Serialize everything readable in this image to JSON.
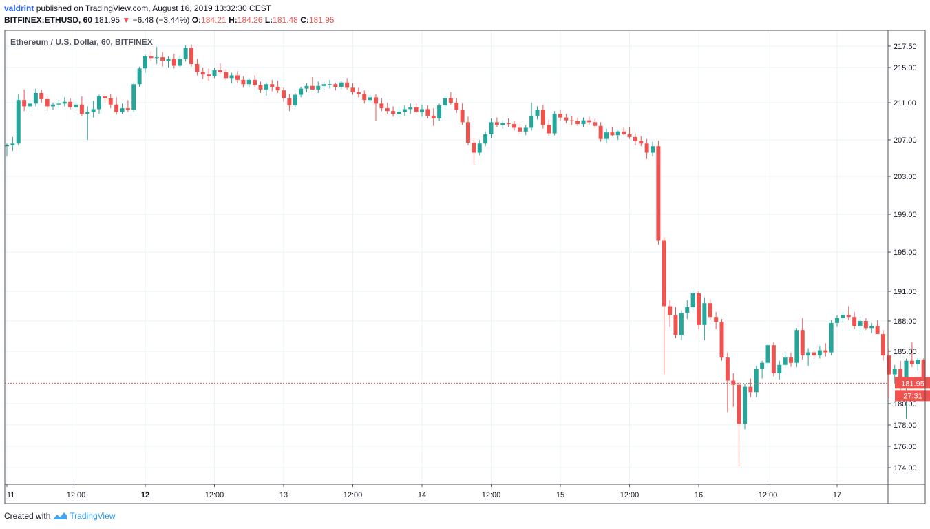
{
  "header": {
    "user": "valdrint",
    "published_text": "published on TradingView.com, August 16, 2019 13:32:30 CEST",
    "symbol": "BITFINEX:ETHUSD, 60",
    "last": "181.95",
    "change_arrow": "▼",
    "change": "−6.48 (−3.44%)",
    "o_label": "O:",
    "o": "184.21",
    "h_label": "H:",
    "h": "184.26",
    "l_label": "L:",
    "l": "181.48",
    "c_label": "C:",
    "c": "181.95"
  },
  "footer": {
    "created_with": "Created with",
    "brand": "TradingView"
  },
  "colors": {
    "up": "#26a69a",
    "down": "#ef5350",
    "grid": "#e9f3f8",
    "axis": "#9598a1",
    "price_line": "#ef5350"
  },
  "chart_data": {
    "type": "candlestick",
    "title": "Ethereum / U.S. Dollar, 60, BITFINEX",
    "x_ticks": [
      "11",
      "12:00",
      "12",
      "12:00",
      "13",
      "12:00",
      "14",
      "12:00",
      "15",
      "12:00",
      "16",
      "12:00",
      "17"
    ],
    "y_ticks": [
      "217.50",
      "215.00",
      "211.00",
      "207.00",
      "203.00",
      "199.00",
      "195.00",
      "191.00",
      "188.00",
      "185.00",
      "180.00",
      "178.00",
      "176.00",
      "174.00"
    ],
    "y_tick_values": [
      217.5,
      215.0,
      211.0,
      207.0,
      203.0,
      199.0,
      195.0,
      191.0,
      188.0,
      185.0,
      180.0,
      178.0,
      176.0,
      174.0
    ],
    "last_price": 181.95,
    "last_price_label": "181.95",
    "countdown_label": "27:31",
    "grid": true,
    "candles": [
      [
        206.3,
        206.6,
        205.2,
        206.4
      ],
      [
        206.4,
        207.3,
        205.8,
        206.6
      ],
      [
        206.6,
        212.0,
        206.4,
        211.3
      ],
      [
        211.3,
        212.5,
        210.1,
        210.6
      ],
      [
        210.6,
        211.3,
        210.0,
        210.9
      ],
      [
        210.9,
        212.6,
        210.6,
        212.1
      ],
      [
        212.1,
        212.5,
        211.0,
        211.4
      ],
      [
        211.4,
        211.7,
        210.1,
        210.6
      ],
      [
        210.6,
        211.0,
        210.2,
        210.8
      ],
      [
        210.8,
        211.3,
        210.4,
        210.9
      ],
      [
        210.9,
        211.6,
        210.6,
        211.1
      ],
      [
        211.1,
        211.5,
        210.3,
        210.5
      ],
      [
        210.5,
        211.2,
        210.1,
        210.8
      ],
      [
        210.8,
        211.7,
        209.6,
        209.8
      ],
      [
        209.8,
        210.6,
        207.0,
        210.0
      ],
      [
        210.0,
        211.2,
        209.4,
        210.3
      ],
      [
        210.3,
        211.9,
        209.8,
        211.7
      ],
      [
        211.7,
        212.0,
        211.0,
        211.5
      ],
      [
        211.5,
        212.0,
        210.4,
        210.8
      ],
      [
        210.8,
        211.6,
        209.7,
        210.0
      ],
      [
        210.0,
        210.9,
        209.8,
        210.4
      ],
      [
        210.4,
        211.3,
        210.0,
        210.2
      ],
      [
        210.2,
        213.3,
        210.0,
        213.1
      ],
      [
        213.1,
        215.1,
        212.8,
        214.9
      ],
      [
        214.9,
        216.5,
        214.4,
        216.3
      ],
      [
        216.3,
        216.9,
        215.8,
        216.1
      ],
      [
        216.1,
        217.4,
        215.4,
        216.2
      ],
      [
        216.2,
        216.8,
        215.1,
        215.8
      ],
      [
        215.8,
        216.3,
        215.0,
        216.0
      ],
      [
        216.0,
        216.6,
        214.9,
        215.2
      ],
      [
        215.2,
        216.4,
        215.1,
        216.0
      ],
      [
        216.0,
        217.6,
        215.7,
        217.3
      ],
      [
        217.3,
        217.7,
        215.1,
        215.4
      ],
      [
        215.4,
        216.0,
        214.1,
        214.5
      ],
      [
        214.5,
        215.0,
        213.7,
        214.2
      ],
      [
        214.2,
        214.9,
        213.5,
        214.0
      ],
      [
        214.0,
        215.0,
        213.8,
        214.7
      ],
      [
        214.7,
        215.5,
        214.3,
        214.5
      ],
      [
        214.5,
        214.8,
        213.6,
        213.8
      ],
      [
        213.8,
        214.4,
        213.2,
        214.1
      ],
      [
        214.1,
        214.6,
        213.2,
        213.6
      ],
      [
        213.6,
        214.0,
        212.7,
        213.1
      ],
      [
        213.1,
        213.8,
        212.7,
        213.6
      ],
      [
        213.6,
        214.1,
        212.8,
        213.0
      ],
      [
        213.0,
        213.4,
        212.1,
        212.5
      ],
      [
        212.5,
        213.3,
        211.8,
        213.1
      ],
      [
        213.1,
        213.6,
        212.3,
        212.8
      ],
      [
        212.8,
        213.5,
        212.1,
        212.4
      ],
      [
        212.4,
        212.7,
        211.1,
        211.5
      ],
      [
        211.5,
        212.0,
        210.1,
        210.7
      ],
      [
        210.7,
        212.1,
        210.5,
        211.9
      ],
      [
        211.9,
        212.8,
        211.6,
        212.6
      ],
      [
        212.6,
        213.2,
        212.2,
        212.9
      ],
      [
        212.9,
        213.9,
        212.5,
        212.5
      ],
      [
        212.5,
        213.4,
        212.1,
        212.9
      ],
      [
        212.9,
        213.4,
        212.5,
        213.1
      ],
      [
        213.1,
        213.6,
        212.6,
        213.1
      ],
      [
        213.1,
        213.3,
        212.4,
        212.8
      ],
      [
        212.8,
        213.5,
        212.5,
        213.3
      ],
      [
        213.3,
        213.8,
        212.5,
        212.7
      ],
      [
        212.7,
        213.2,
        211.9,
        212.2
      ],
      [
        212.2,
        212.7,
        211.6,
        212.0
      ],
      [
        212.0,
        212.4,
        210.9,
        211.3
      ],
      [
        211.3,
        211.9,
        211.0,
        211.6
      ],
      [
        211.6,
        212.0,
        209.0,
        210.9
      ],
      [
        210.9,
        211.5,
        210.1,
        210.4
      ],
      [
        210.4,
        211.0,
        209.8,
        210.1
      ],
      [
        210.1,
        210.6,
        209.5,
        209.8
      ],
      [
        209.8,
        210.6,
        209.4,
        210.0
      ],
      [
        210.0,
        210.7,
        209.6,
        210.3
      ],
      [
        210.3,
        210.9,
        209.8,
        210.5
      ],
      [
        210.5,
        210.9,
        209.9,
        210.0
      ],
      [
        210.0,
        210.8,
        209.5,
        210.3
      ],
      [
        210.3,
        210.7,
        209.3,
        209.6
      ],
      [
        209.6,
        210.4,
        208.5,
        209.3
      ],
      [
        209.3,
        210.9,
        209.0,
        210.7
      ],
      [
        210.7,
        211.8,
        210.2,
        211.5
      ],
      [
        211.5,
        212.2,
        210.8,
        211.0
      ],
      [
        211.0,
        211.5,
        209.9,
        210.2
      ],
      [
        210.2,
        210.9,
        208.6,
        208.9
      ],
      [
        208.9,
        209.5,
        206.4,
        206.7
      ],
      [
        206.7,
        207.2,
        204.3,
        205.6
      ],
      [
        205.6,
        207.0,
        205.3,
        206.6
      ],
      [
        206.6,
        207.9,
        206.3,
        207.6
      ],
      [
        207.6,
        209.3,
        207.2,
        208.9
      ],
      [
        208.9,
        209.4,
        208.4,
        208.6
      ],
      [
        208.6,
        209.1,
        208.2,
        208.8
      ],
      [
        208.8,
        209.3,
        208.4,
        208.7
      ],
      [
        208.7,
        209.0,
        208.0,
        208.3
      ],
      [
        208.3,
        208.7,
        207.6,
        207.9
      ],
      [
        207.9,
        208.6,
        207.5,
        208.3
      ],
      [
        208.3,
        211.0,
        208.0,
        209.6
      ],
      [
        209.6,
        210.6,
        209.2,
        210.2
      ],
      [
        210.2,
        210.8,
        208.2,
        208.6
      ],
      [
        208.6,
        209.2,
        207.4,
        207.7
      ],
      [
        207.7,
        210.1,
        207.5,
        209.8
      ],
      [
        209.8,
        210.2,
        209.0,
        209.4
      ],
      [
        209.4,
        209.8,
        208.8,
        209.1
      ],
      [
        209.1,
        209.6,
        208.6,
        209.0
      ],
      [
        209.0,
        209.4,
        208.5,
        208.7
      ],
      [
        208.7,
        209.4,
        208.4,
        209.1
      ],
      [
        209.1,
        209.5,
        208.6,
        208.9
      ],
      [
        208.9,
        209.3,
        208.3,
        208.5
      ],
      [
        208.5,
        208.9,
        206.8,
        207.1
      ],
      [
        207.1,
        208.2,
        206.6,
        207.8
      ],
      [
        207.8,
        208.4,
        207.4,
        207.5
      ],
      [
        207.5,
        208.0,
        207.0,
        207.9
      ],
      [
        207.9,
        208.3,
        207.5,
        207.6
      ],
      [
        207.6,
        208.4,
        207.1,
        207.3
      ],
      [
        207.3,
        207.7,
        206.4,
        206.9
      ],
      [
        206.9,
        207.4,
        206.3,
        206.6
      ],
      [
        206.6,
        207.1,
        204.9,
        205.6
      ],
      [
        205.6,
        206.8,
        205.2,
        206.3
      ],
      [
        206.3,
        206.9,
        195.8,
        196.2
      ],
      [
        196.2,
        196.6,
        182.8,
        189.5
      ],
      [
        189.5,
        190.1,
        187.4,
        188.6
      ],
      [
        188.6,
        189.4,
        186.3,
        186.6
      ],
      [
        186.6,
        189.1,
        186.1,
        188.8
      ],
      [
        188.8,
        190.1,
        188.2,
        189.4
      ],
      [
        189.4,
        191.1,
        189.1,
        190.8
      ],
      [
        190.8,
        191.0,
        187.2,
        187.6
      ],
      [
        187.6,
        190.4,
        186.1,
        189.8
      ],
      [
        189.8,
        190.2,
        188.1,
        188.4
      ],
      [
        188.4,
        188.9,
        187.2,
        187.9
      ],
      [
        187.9,
        188.2,
        184.1,
        184.4
      ],
      [
        184.4,
        184.9,
        179.2,
        182.2
      ],
      [
        182.2,
        182.9,
        179.7,
        181.8
      ],
      [
        181.8,
        182.1,
        174.1,
        178.1
      ],
      [
        178.1,
        181.9,
        177.6,
        181.6
      ],
      [
        181.6,
        182.4,
        180.6,
        181.1
      ],
      [
        181.1,
        183.6,
        180.6,
        183.3
      ],
      [
        183.3,
        184.1,
        182.4,
        183.9
      ],
      [
        183.9,
        185.7,
        183.5,
        185.6
      ],
      [
        185.6,
        185.9,
        182.6,
        182.9
      ],
      [
        182.9,
        184.1,
        182.3,
        183.7
      ],
      [
        183.7,
        184.9,
        183.4,
        184.4
      ],
      [
        184.4,
        184.9,
        183.5,
        183.9
      ],
      [
        183.9,
        187.3,
        183.5,
        187.1
      ],
      [
        187.1,
        188.3,
        184.2,
        184.6
      ],
      [
        184.6,
        185.3,
        183.6,
        184.9
      ],
      [
        184.9,
        185.1,
        184.3,
        184.6
      ],
      [
        184.6,
        185.5,
        184.3,
        185.1
      ],
      [
        185.1,
        185.8,
        184.5,
        184.9
      ],
      [
        184.9,
        188.1,
        184.6,
        187.8
      ],
      [
        187.8,
        188.6,
        187.4,
        188.3
      ],
      [
        188.3,
        188.9,
        187.8,
        188.6
      ],
      [
        188.6,
        189.5,
        188.1,
        188.4
      ],
      [
        188.4,
        188.9,
        187.2,
        187.5
      ],
      [
        187.5,
        188.2,
        186.9,
        188.0
      ],
      [
        188.0,
        188.3,
        187.1,
        187.3
      ],
      [
        187.3,
        187.8,
        186.8,
        187.5
      ],
      [
        187.5,
        188.1,
        186.9,
        186.7
      ],
      [
        186.7,
        187.1,
        184.1,
        184.6
      ],
      [
        184.6,
        185.3,
        180.5,
        182.8
      ],
      [
        182.8,
        183.7,
        181.9,
        183.3
      ],
      [
        183.3,
        184.1,
        180.9,
        182.1
      ],
      [
        182.1,
        184.3,
        178.6,
        184.1
      ],
      [
        184.1,
        185.9,
        183.5,
        183.8
      ],
      [
        183.8,
        184.4,
        183.2,
        184.2
      ],
      [
        184.2,
        184.3,
        181.5,
        181.95
      ]
    ]
  }
}
